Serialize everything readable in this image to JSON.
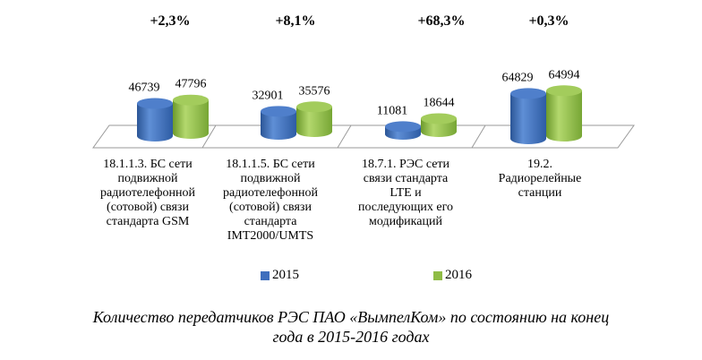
{
  "chart_data": {
    "type": "bar",
    "title": "Количество передатчиков РЭС ПАО «ВымпелКом» по состоянию на конец года в 2015-2016 годах",
    "categories": [
      [
        "18.1.1.3. БС сети",
        "подвижной",
        "радиотелефонной",
        "(сотовой) связи",
        "стандарта GSM"
      ],
      [
        "18.1.1.5. БС сети",
        "подвижной",
        "радиотелефонной",
        "(сотовой) связи",
        "стандарта",
        "IMT2000/UMTS"
      ],
      [
        "18.7.1. РЭС сети",
        "связи стандарта",
        "LTE и",
        "последующих  его",
        "модификаций"
      ],
      [
        "19.2.",
        "Радиорелейные",
        "станции"
      ]
    ],
    "series": [
      {
        "name": "2015",
        "values": [
          46739,
          32901,
          11081,
          64829
        ],
        "color": "#3f6fbd"
      },
      {
        "name": "2016",
        "values": [
          47796,
          35576,
          18644,
          64994
        ],
        "color": "#8fbc45"
      }
    ],
    "value_labels": {
      "2015": [
        "46739",
        "32901",
        "11081",
        "64829"
      ],
      "2016": [
        "47796",
        "35576",
        "18644",
        "64994"
      ]
    },
    "growth_labels": [
      "+2,3%",
      "+8,1%",
      "+68,3%",
      "+0,3%"
    ],
    "legend": [
      "2015",
      "2016"
    ],
    "ylim": [
      0,
      70000
    ],
    "grid": false,
    "legend_position": "bottom"
  },
  "caption": {
    "line1": "Количество передатчиков РЭС ПАО «ВымпелКом» по состоянию на конец",
    "line2": "года в 2015-2016 годах"
  }
}
